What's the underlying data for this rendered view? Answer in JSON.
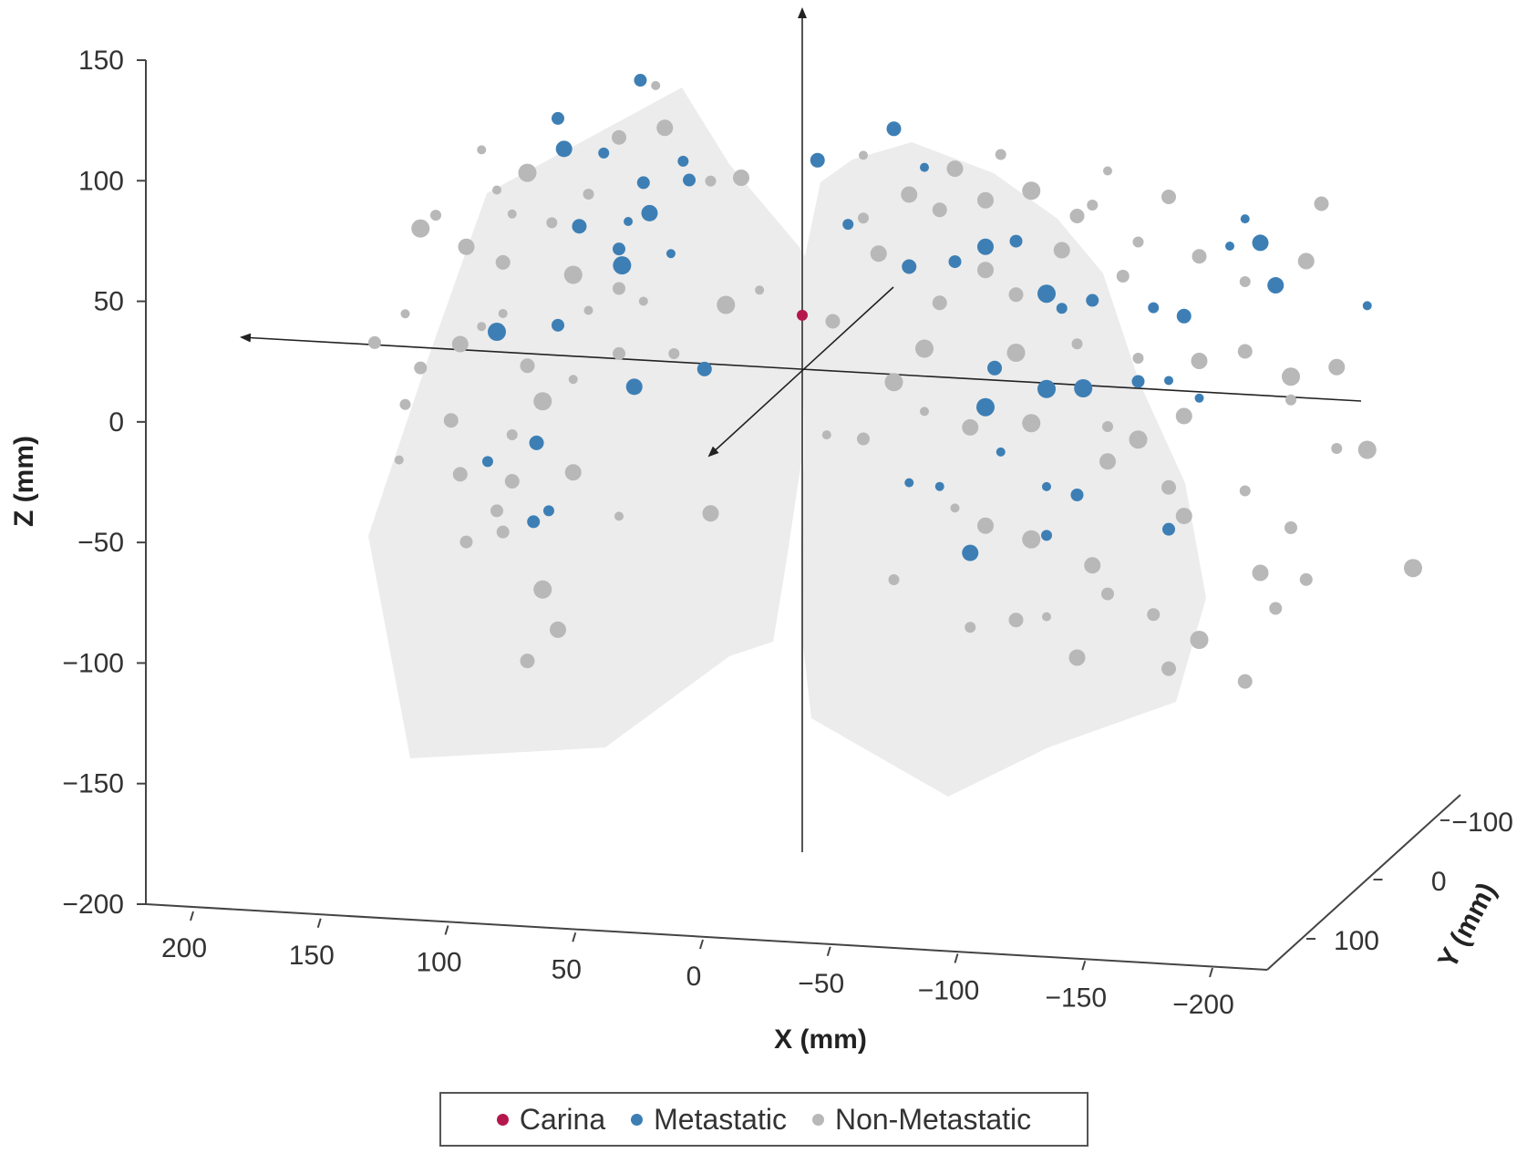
{
  "chart_data": {
    "type": "scatter",
    "subtype": "3d-scatter",
    "xlabel": "X (mm)",
    "ylabel": "Y (mm)",
    "zlabel": "Z (mm)",
    "x_ticks": [
      200,
      150,
      100,
      50,
      0,
      -50,
      -100,
      -150,
      -200
    ],
    "y_ticks": [
      -100,
      0,
      100
    ],
    "z_ticks": [
      150,
      100,
      50,
      0,
      -50,
      -100,
      -150,
      -200
    ],
    "xlim": [
      -200,
      200
    ],
    "ylim": [
      -100,
      100
    ],
    "zlim": [
      -200,
      150
    ],
    "grid": false,
    "legend_position": "bottom-center",
    "legend": [
      {
        "name": "Carina",
        "color": "#b5174d"
      },
      {
        "name": "Metastatic",
        "color": "#3d7fb5"
      },
      {
        "name": "Non-Metastatic",
        "color": "#b8b8b8"
      }
    ],
    "lung_fill_color": "#ececec",
    "series": [
      {
        "name": "Carina",
        "color": "#b5174d",
        "points": [
          {
            "x": 0,
            "z": 22
          }
        ]
      },
      {
        "name": "Metastatic",
        "color": "#3d7fb5",
        "points": [
          {
            "x": 80,
            "z": 102
          },
          {
            "x": 78,
            "z": 89
          },
          {
            "x": 65,
            "z": 88
          },
          {
            "x": 53,
            "z": 120
          },
          {
            "x": 39,
            "z": 86
          },
          {
            "x": 37,
            "z": 78
          },
          {
            "x": 52,
            "z": 76
          },
          {
            "x": 50,
            "z": 63
          },
          {
            "x": 57,
            "z": 59
          },
          {
            "x": 60,
            "z": 47
          },
          {
            "x": 59,
            "z": 40
          },
          {
            "x": 43,
            "z": 46
          },
          {
            "x": 73,
            "z": 56
          },
          {
            "x": 80,
            "z": 13
          },
          {
            "x": 100,
            "z": 9
          },
          {
            "x": 55,
            "z": -12
          },
          {
            "x": 87,
            "z": -38
          },
          {
            "x": 83,
            "z": -67
          },
          {
            "x": 88,
            "z": -72
          },
          {
            "x": 103,
            "z": -47
          },
          {
            "x": 32,
            "z": -3
          },
          {
            "x": -5,
            "z": 89
          },
          {
            "x": -15,
            "z": 62
          },
          {
            "x": -30,
            "z": 104
          },
          {
            "x": -40,
            "z": 88
          },
          {
            "x": -35,
            "z": 45
          },
          {
            "x": -50,
            "z": 48
          },
          {
            "x": -60,
            "z": 55
          },
          {
            "x": -70,
            "z": 58
          },
          {
            "x": -80,
            "z": 36
          },
          {
            "x": -85,
            "z": 30
          },
          {
            "x": -95,
            "z": 34
          },
          {
            "x": -115,
            "z": 32
          },
          {
            "x": -125,
            "z": 29
          },
          {
            "x": -140,
            "z": 60
          },
          {
            "x": -145,
            "z": 72
          },
          {
            "x": -150,
            "z": 62
          },
          {
            "x": -155,
            "z": 44
          },
          {
            "x": -185,
            "z": 37
          },
          {
            "x": -63,
            "z": 3
          },
          {
            "x": -80,
            "z": -5
          },
          {
            "x": -92,
            "z": -4
          },
          {
            "x": -110,
            "z": 0
          },
          {
            "x": -120,
            "z": 1
          },
          {
            "x": -130,
            "z": -6
          },
          {
            "x": -60,
            "z": -14
          },
          {
            "x": -65,
            "z": -33
          },
          {
            "x": -80,
            "z": -47
          },
          {
            "x": -90,
            "z": -50
          },
          {
            "x": -35,
            "z": -48
          },
          {
            "x": -45,
            "z": -49
          },
          {
            "x": -80,
            "z": -68
          },
          {
            "x": -55,
            "z": -77
          },
          {
            "x": -120,
            "z": -63
          }
        ]
      },
      {
        "name": "Non-Metastatic",
        "color": "#b8b8b8",
        "points": [
          {
            "x": 105,
            "z": 87
          },
          {
            "x": 90,
            "z": 78
          },
          {
            "x": 100,
            "z": 70
          },
          {
            "x": 120,
            "z": 58
          },
          {
            "x": 125,
            "z": 52
          },
          {
            "x": 95,
            "z": 60
          },
          {
            "x": 82,
            "z": 57
          },
          {
            "x": 70,
            "z": 70
          },
          {
            "x": 60,
            "z": 95
          },
          {
            "x": 45,
            "z": 100
          },
          {
            "x": 48,
            "z": 118
          },
          {
            "x": 30,
            "z": 78
          },
          {
            "x": 20,
            "z": 80
          },
          {
            "x": 110,
            "z": 45
          },
          {
            "x": 98,
            "z": 39
          },
          {
            "x": 75,
            "z": 35
          },
          {
            "x": 60,
            "z": 30
          },
          {
            "x": 52,
            "z": 25
          },
          {
            "x": 70,
            "z": 20
          },
          {
            "x": 98,
            "z": 17
          },
          {
            "x": 105,
            "z": 11
          },
          {
            "x": 112,
            "z": 3
          },
          {
            "x": 90,
            "z": -5
          },
          {
            "x": 75,
            "z": -10
          },
          {
            "x": 60,
            "z": 2
          },
          {
            "x": 125,
            "z": -8
          },
          {
            "x": 140,
            "z": 2
          },
          {
            "x": 130,
            "z": -24
          },
          {
            "x": 115,
            "z": -30
          },
          {
            "x": 95,
            "z": -35
          },
          {
            "x": 85,
            "z": -20
          },
          {
            "x": 95,
            "z": -55
          },
          {
            "x": 112,
            "z": -53
          },
          {
            "x": 75,
            "z": -50
          },
          {
            "x": 100,
            "z": -68
          },
          {
            "x": 98,
            "z": -77
          },
          {
            "x": 110,
            "z": -82
          },
          {
            "x": 85,
            "z": -101
          },
          {
            "x": 80,
            "z": -118
          },
          {
            "x": 90,
            "z": -132
          },
          {
            "x": 60,
            "z": -68
          },
          {
            "x": 30,
            "z": -65
          },
          {
            "x": 132,
            "z": -48
          },
          {
            "x": 130,
            "z": 15
          },
          {
            "x": 42,
            "z": 3
          },
          {
            "x": 25,
            "z": 25
          },
          {
            "x": 14,
            "z": 32
          },
          {
            "x": -8,
            "z": -29
          },
          {
            "x": -20,
            "z": 92
          },
          {
            "x": -35,
            "z": 76
          },
          {
            "x": -20,
            "z": 65
          },
          {
            "x": -25,
            "z": 50
          },
          {
            "x": -45,
            "z": 70
          },
          {
            "x": -60,
            "z": 75
          },
          {
            "x": -75,
            "z": 80
          },
          {
            "x": -90,
            "z": 70
          },
          {
            "x": -100,
            "z": 90
          },
          {
            "x": -110,
            "z": 60
          },
          {
            "x": -70,
            "z": 35
          },
          {
            "x": -60,
            "z": 45
          },
          {
            "x": -45,
            "z": 30
          },
          {
            "x": -40,
            "z": 10
          },
          {
            "x": -30,
            "z": -5
          },
          {
            "x": -40,
            "z": -17
          },
          {
            "x": -55,
            "z": -23
          },
          {
            "x": -70,
            "z": 10
          },
          {
            "x": -75,
            "z": -20
          },
          {
            "x": -100,
            "z": -20
          },
          {
            "x": -110,
            "z": -25
          },
          {
            "x": -125,
            "z": -14
          },
          {
            "x": -130,
            "z": 10
          },
          {
            "x": -145,
            "z": 15
          },
          {
            "x": -160,
            "z": 5
          },
          {
            "x": -175,
            "z": 10
          },
          {
            "x": -165,
            "z": 55
          },
          {
            "x": -170,
            "z": 80
          },
          {
            "x": -160,
            "z": -5
          },
          {
            "x": -175,
            "z": -25
          },
          {
            "x": -120,
            "z": -45
          },
          {
            "x": -100,
            "z": -35
          },
          {
            "x": -125,
            "z": -57
          },
          {
            "x": -145,
            "z": -45
          },
          {
            "x": -160,
            "z": -60
          },
          {
            "x": -185,
            "z": -25
          },
          {
            "x": -200,
            "z": -75
          },
          {
            "x": -165,
            "z": -82
          },
          {
            "x": -150,
            "z": -80
          },
          {
            "x": -95,
            "z": -80
          },
          {
            "x": -75,
            "z": -70
          },
          {
            "x": -60,
            "z": -65
          },
          {
            "x": -50,
            "z": -58
          },
          {
            "x": -30,
            "z": -90
          },
          {
            "x": -70,
            "z": -105
          },
          {
            "x": -80,
            "z": -103
          },
          {
            "x": -90,
            "z": -120
          },
          {
            "x": -55,
            "z": -109
          },
          {
            "x": -120,
            "z": -123
          },
          {
            "x": -145,
            "z": -127
          },
          {
            "x": -100,
            "z": -92
          },
          {
            "x": -115,
            "z": -100
          },
          {
            "x": -155,
            "z": -95
          },
          {
            "x": -130,
            "z": -110
          },
          {
            "x": -20,
            "z": -30
          },
          {
            "x": -10,
            "z": 20
          },
          {
            "x": -85,
            "z": 55
          },
          {
            "x": -95,
            "z": 75
          },
          {
            "x": -105,
            "z": 45
          },
          {
            "x": -120,
            "z": 80
          },
          {
            "x": -130,
            "z": 55
          },
          {
            "x": -145,
            "z": 45
          },
          {
            "x": -90,
            "z": 15
          },
          {
            "x": -110,
            "z": 10
          },
          {
            "x": -50,
            "z": 88
          },
          {
            "x": -65,
            "z": 95
          }
        ]
      }
    ]
  }
}
